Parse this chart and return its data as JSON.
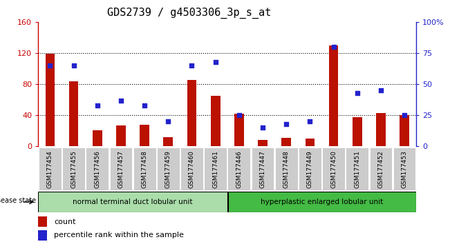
{
  "title": "GDS2739 / g4503306_3p_s_at",
  "samples": [
    "GSM177454",
    "GSM177455",
    "GSM177456",
    "GSM177457",
    "GSM177458",
    "GSM177459",
    "GSM177460",
    "GSM177461",
    "GSM177446",
    "GSM177447",
    "GSM177448",
    "GSM177449",
    "GSM177450",
    "GSM177451",
    "GSM177452",
    "GSM177453"
  ],
  "counts": [
    119,
    84,
    21,
    27,
    28,
    12,
    85,
    65,
    42,
    8,
    11,
    10,
    130,
    38,
    43,
    40
  ],
  "percentiles": [
    65,
    65,
    33,
    37,
    33,
    20,
    65,
    68,
    25,
    15,
    18,
    20,
    80,
    43,
    45,
    25
  ],
  "group1_label": "normal terminal duct lobular unit",
  "group2_label": "hyperplastic enlarged lobular unit",
  "group1_count": 8,
  "group2_count": 8,
  "ylim_left": [
    0,
    160
  ],
  "ylim_right": [
    0,
    100
  ],
  "yticks_left": [
    0,
    40,
    80,
    120,
    160
  ],
  "yticks_right": [
    0,
    25,
    50,
    75,
    100
  ],
  "ytick_labels_right": [
    "0",
    "25",
    "50",
    "75",
    "100%"
  ],
  "bar_color": "#BB1100",
  "dot_color": "#2222CC",
  "group1_bg": "#AADDAA",
  "group2_bg": "#44BB44",
  "tick_bg": "#CCCCCC",
  "legend_count_label": "count",
  "legend_pct_label": "percentile rank within the sample",
  "disease_state_label": "disease state",
  "left_axis_color": "#CC0000",
  "right_axis_color": "#2222CC",
  "bar_width": 0.4
}
